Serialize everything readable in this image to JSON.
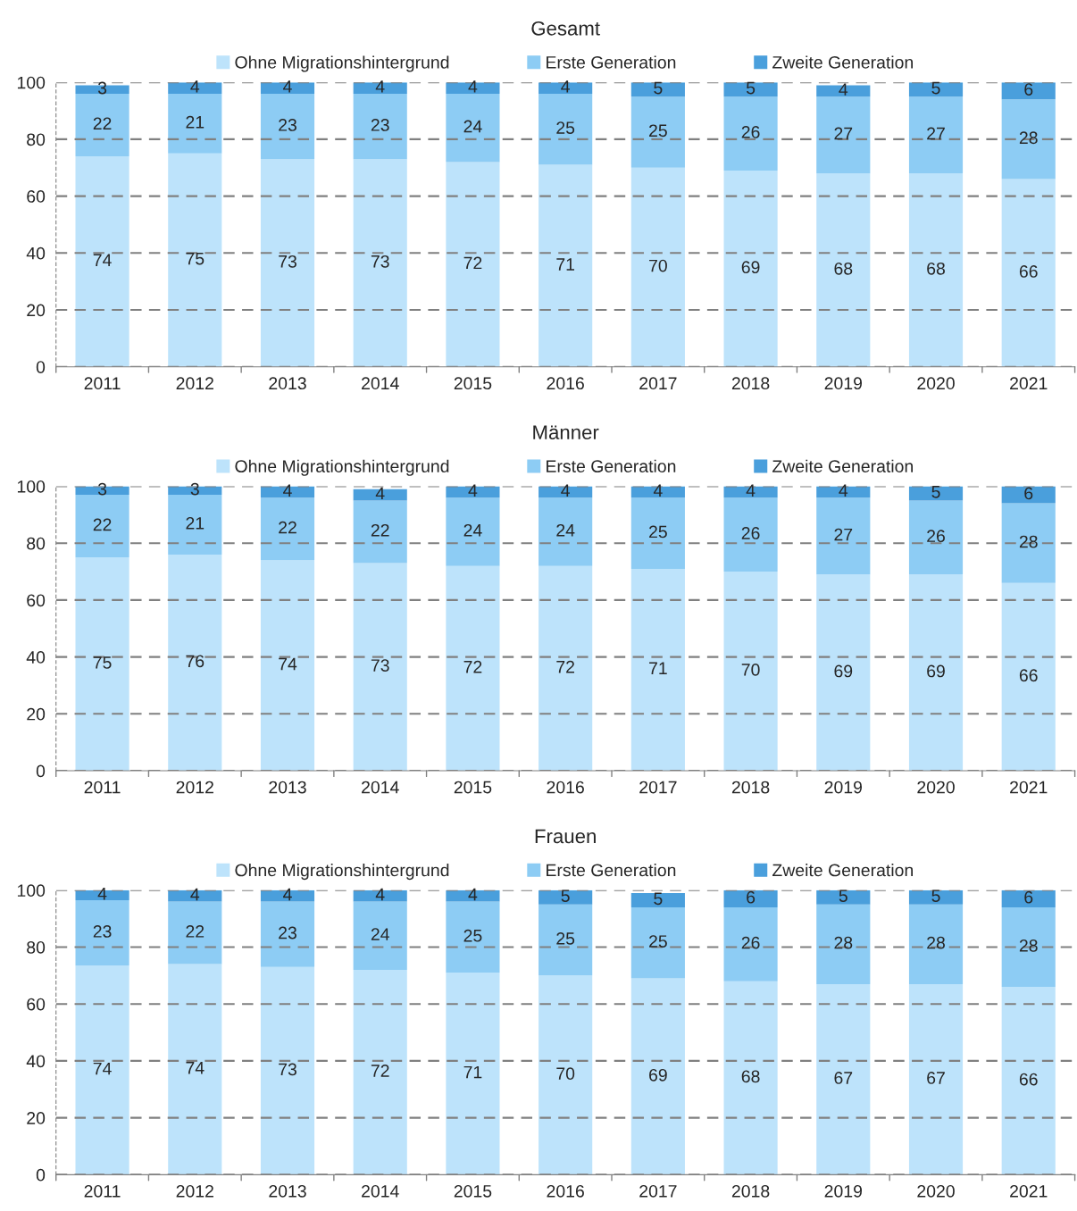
{
  "chart_data": [
    {
      "type": "bar",
      "title": "Gesamt",
      "stacked": true,
      "data_labels": true,
      "legend": "top",
      "grid": "y",
      "categories": [
        "2011",
        "2012",
        "2013",
        "2014",
        "2015",
        "2016",
        "2017",
        "2018",
        "2019",
        "2020",
        "2021"
      ],
      "ylim": [
        0,
        100
      ],
      "yticks": [
        0,
        20,
        40,
        60,
        80,
        100
      ],
      "series": [
        {
          "name": "Ohne Migrationshintergrund",
          "color": "#bde3fb",
          "values": [
            74,
            75,
            73,
            73,
            72,
            71,
            70,
            69,
            68,
            68,
            66
          ]
        },
        {
          "name": "Erste Generation",
          "color": "#8dccf4",
          "values": [
            22,
            21,
            23,
            23,
            24,
            25,
            25,
            26,
            27,
            27,
            28
          ]
        },
        {
          "name": "Zweite Generation",
          "color": "#4a9fdc",
          "values": [
            3,
            4,
            4,
            4,
            4,
            4,
            5,
            5,
            4,
            5,
            6
          ]
        }
      ]
    },
    {
      "type": "bar",
      "title": "Männer",
      "stacked": true,
      "data_labels": true,
      "legend": "top",
      "grid": "y",
      "categories": [
        "2011",
        "2012",
        "2013",
        "2014",
        "2015",
        "2016",
        "2017",
        "2018",
        "2019",
        "2020",
        "2021"
      ],
      "ylim": [
        0,
        100
      ],
      "yticks": [
        0,
        20,
        40,
        60,
        80,
        100
      ],
      "series": [
        {
          "name": "Ohne Migrationshintergrund",
          "color": "#bde3fb",
          "values": [
            75,
            76,
            74,
            73,
            72,
            72,
            71,
            70,
            69,
            69,
            66
          ]
        },
        {
          "name": "Erste Generation",
          "color": "#8dccf4",
          "values": [
            22,
            21,
            22,
            22,
            24,
            24,
            25,
            26,
            27,
            26,
            28
          ]
        },
        {
          "name": "Zweite Generation",
          "color": "#4a9fdc",
          "values": [
            3,
            3,
            4,
            4,
            4,
            4,
            4,
            4,
            4,
            5,
            6
          ]
        }
      ]
    },
    {
      "type": "bar",
      "title": "Frauen",
      "stacked": true,
      "legend": "top",
      "grid": "y",
      "categories": [
        "2011",
        "2012",
        "2013",
        "2014",
        "2015",
        "2016",
        "2017",
        "2018",
        "2019",
        "2020",
        "2021"
      ],
      "ylim": [
        0,
        100
      ],
      "yticks": [
        0,
        20,
        40,
        60,
        80,
        100
      ],
      "series": [
        {
          "name": "Ohne Migrationshintergrund",
          "color": "#bde3fb",
          "values": [
            73.5,
            74,
            73,
            72,
            71,
            70,
            69,
            68,
            67,
            67,
            66
          ],
          "value_labels": [
            "74",
            "74",
            "73",
            "72",
            "71",
            "70",
            "69",
            "68",
            "67",
            "67",
            "66"
          ]
        },
        {
          "name": "Erste Generation",
          "color": "#8dccf4",
          "values": [
            23,
            22,
            23,
            24,
            25,
            25,
            25,
            26,
            28,
            28,
            28
          ],
          "value_labels": [
            "23",
            "22",
            "23",
            "24",
            "25",
            "25",
            "25",
            "26",
            "28",
            "28",
            "28"
          ]
        },
        {
          "name": "Zweite Generation",
          "color": "#4a9fdc",
          "values": [
            3.5,
            4,
            4,
            4,
            4,
            5,
            5,
            6,
            5,
            5,
            6
          ],
          "value_labels": [
            "4",
            "4",
            "4",
            "4",
            "4",
            "5",
            "5",
            "6",
            "5",
            "5",
            "6"
          ]
        }
      ]
    }
  ]
}
